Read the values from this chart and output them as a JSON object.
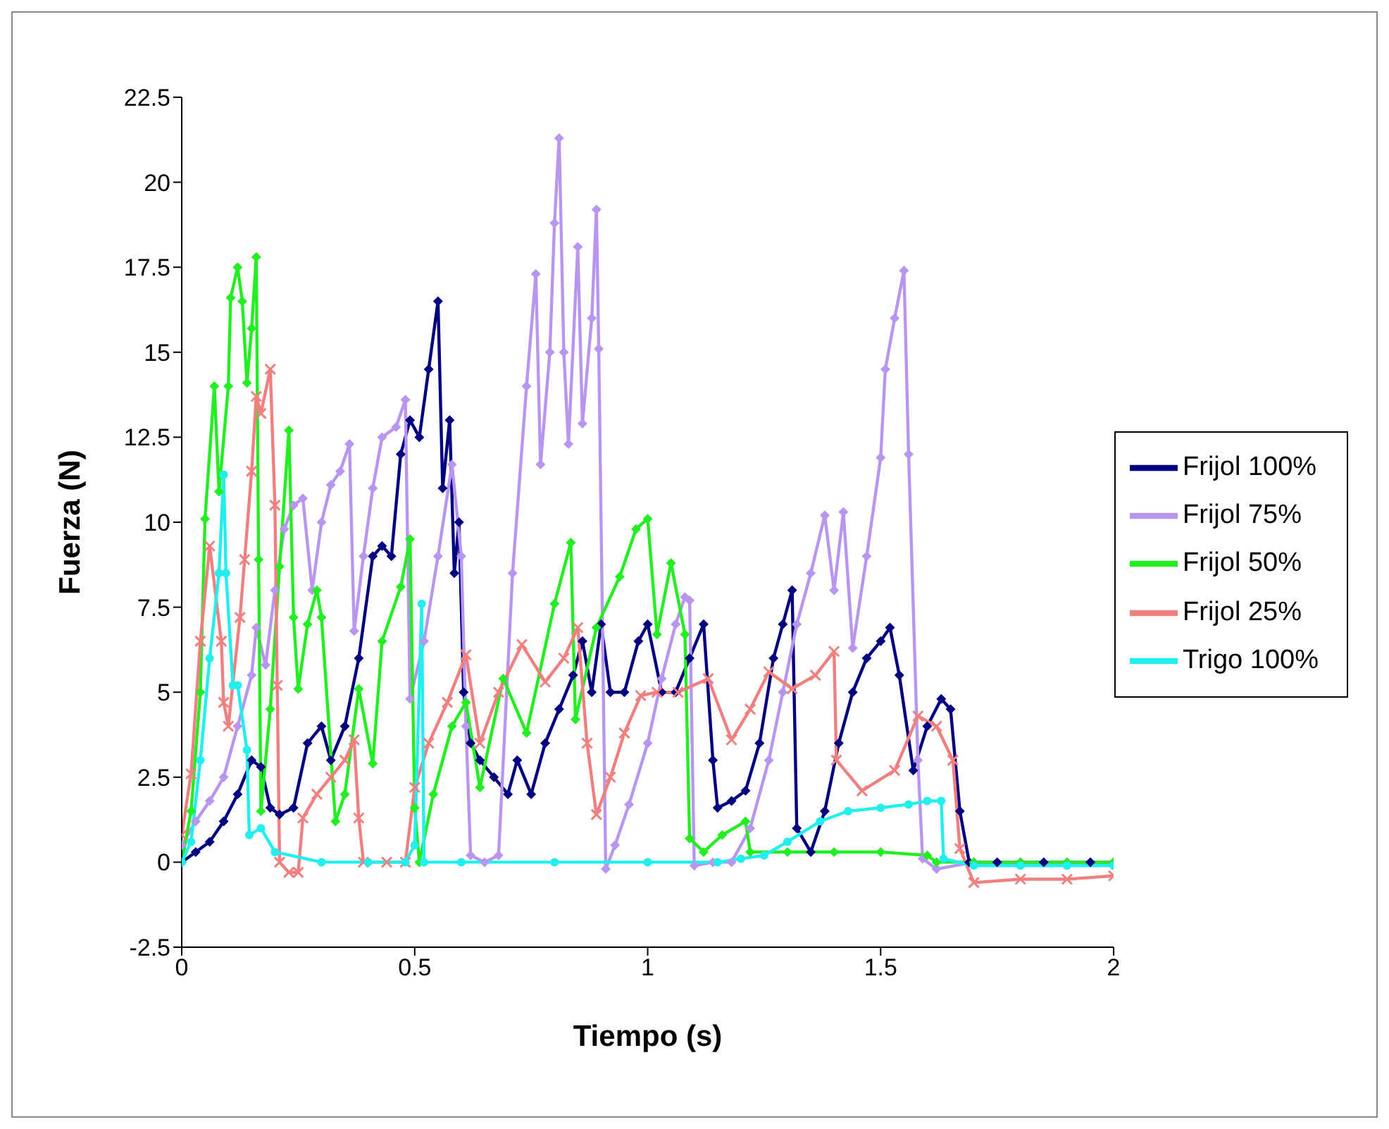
{
  "chart_data": {
    "type": "line",
    "xlabel": "Tiempo (s)",
    "ylabel": "Fuerza (N)",
    "xlim": [
      0,
      2
    ],
    "xticks": [
      0,
      0.5,
      1,
      1.5,
      2
    ],
    "ylim": [
      -2.5,
      22.5
    ],
    "yticks": [
      -2.5,
      0,
      2.5,
      5,
      7.5,
      10,
      12.5,
      15,
      17.5,
      20,
      22.5
    ],
    "grid": false,
    "legend": "right",
    "line_style": "solid",
    "series": [
      {
        "name": "Frijol 100%",
        "color": "#000080",
        "marker": "diamond",
        "x": [
          0,
          0.03,
          0.06,
          0.09,
          0.12,
          0.15,
          0.17,
          0.19,
          0.21,
          0.24,
          0.27,
          0.3,
          0.32,
          0.35,
          0.38,
          0.41,
          0.43,
          0.45,
          0.47,
          0.49,
          0.51,
          0.53,
          0.55,
          0.56,
          0.575,
          0.585,
          0.595,
          0.605,
          0.62,
          0.64,
          0.67,
          0.7,
          0.72,
          0.75,
          0.78,
          0.81,
          0.84,
          0.86,
          0.88,
          0.9,
          0.92,
          0.95,
          0.98,
          1.0,
          1.03,
          1.06,
          1.09,
          1.12,
          1.14,
          1.15,
          1.18,
          1.21,
          1.24,
          1.27,
          1.29,
          1.31,
          1.32,
          1.35,
          1.38,
          1.41,
          1.44,
          1.47,
          1.5,
          1.52,
          1.54,
          1.57,
          1.6,
          1.63,
          1.65,
          1.67,
          1.69,
          1.75,
          1.85,
          1.95,
          2.0
        ],
        "values": [
          0,
          0.3,
          0.6,
          1.2,
          2,
          3,
          2.8,
          1.6,
          1.4,
          1.6,
          3.5,
          4,
          3,
          4,
          6,
          9,
          9.3,
          9,
          12,
          13,
          12.5,
          14.5,
          16.5,
          11,
          13,
          8.5,
          10,
          5,
          3.5,
          3,
          2.5,
          2,
          3,
          2,
          3.5,
          4.5,
          5.5,
          6.5,
          5,
          7,
          5,
          5,
          6.5,
          7,
          5,
          5,
          6,
          7,
          3,
          1.6,
          1.8,
          2.1,
          3.5,
          6,
          7,
          8,
          1,
          0.3,
          1.5,
          3.5,
          5,
          6,
          6.5,
          6.9,
          5.5,
          2.7,
          4,
          4.8,
          4.5,
          1.5,
          0,
          0,
          0,
          0,
          0
        ]
      },
      {
        "name": "Frijol 75%",
        "color": "#b896f0",
        "marker": "diamond",
        "x": [
          0,
          0.03,
          0.06,
          0.09,
          0.12,
          0.15,
          0.16,
          0.18,
          0.2,
          0.22,
          0.24,
          0.26,
          0.28,
          0.3,
          0.32,
          0.34,
          0.36,
          0.37,
          0.39,
          0.41,
          0.43,
          0.46,
          0.48,
          0.49,
          0.52,
          0.55,
          0.58,
          0.6,
          0.61,
          0.62,
          0.65,
          0.68,
          0.71,
          0.74,
          0.76,
          0.77,
          0.79,
          0.8,
          0.81,
          0.82,
          0.83,
          0.85,
          0.86,
          0.88,
          0.89,
          0.895,
          0.91,
          0.93,
          0.96,
          1.0,
          1.03,
          1.06,
          1.08,
          1.09,
          1.1,
          1.14,
          1.18,
          1.22,
          1.26,
          1.29,
          1.32,
          1.35,
          1.38,
          1.4,
          1.42,
          1.44,
          1.47,
          1.5,
          1.51,
          1.53,
          1.55,
          1.56,
          1.58,
          1.59,
          1.62,
          1.7,
          1.8,
          1.9,
          2.0
        ],
        "values": [
          0.5,
          1.2,
          1.8,
          2.5,
          4,
          5.5,
          6.9,
          5.8,
          8,
          9.8,
          10.5,
          10.7,
          8,
          10,
          11.1,
          11.5,
          12.3,
          6.8,
          9,
          11,
          12.5,
          12.8,
          13.6,
          4.8,
          6.5,
          9,
          11.7,
          9,
          4,
          0.2,
          0,
          0.2,
          8.5,
          14,
          17.3,
          11.7,
          15,
          18.8,
          21.3,
          15,
          12.3,
          18.1,
          12.9,
          16,
          19.2,
          15.1,
          -0.2,
          0.5,
          1.7,
          3.5,
          5.4,
          7,
          7.8,
          7.7,
          -0.1,
          0,
          0,
          1,
          3,
          5,
          7,
          8.5,
          10.2,
          8,
          10.3,
          6.3,
          9,
          11.9,
          14.5,
          16,
          17.4,
          12,
          3,
          0.1,
          -0.2,
          0,
          0,
          0,
          0
        ]
      },
      {
        "name": "Frijol 50%",
        "color": "#22ee22",
        "marker": "diamond",
        "x": [
          0,
          0.02,
          0.04,
          0.05,
          0.07,
          0.08,
          0.1,
          0.105,
          0.12,
          0.13,
          0.14,
          0.15,
          0.16,
          0.165,
          0.17,
          0.19,
          0.21,
          0.23,
          0.24,
          0.25,
          0.27,
          0.29,
          0.3,
          0.33,
          0.35,
          0.38,
          0.41,
          0.43,
          0.47,
          0.49,
          0.5,
          0.51,
          0.54,
          0.58,
          0.61,
          0.64,
          0.69,
          0.74,
          0.8,
          0.835,
          0.845,
          0.89,
          0.94,
          0.975,
          1.0,
          1.02,
          1.05,
          1.08,
          1.09,
          1.12,
          1.16,
          1.21,
          1.22,
          1.3,
          1.4,
          1.5,
          1.6,
          1.62,
          1.7,
          1.8,
          1.9,
          2.0
        ],
        "values": [
          0,
          1.5,
          5,
          10.1,
          14,
          10.9,
          14,
          16.6,
          17.5,
          16.5,
          14.1,
          15.7,
          17.8,
          8.9,
          1.5,
          4.5,
          8.7,
          12.7,
          7.2,
          5.1,
          7,
          8,
          7.2,
          1.2,
          2,
          5.1,
          2.9,
          6.5,
          8.1,
          9.5,
          1.6,
          0,
          2,
          4,
          4.7,
          2.2,
          5.4,
          3.8,
          7.6,
          9.4,
          4.2,
          6.9,
          8.4,
          9.8,
          10.1,
          6.7,
          8.8,
          6.7,
          0.7,
          0.3,
          0.8,
          1.2,
          0.3,
          0.3,
          0.3,
          0.3,
          0.2,
          0,
          0,
          0,
          0,
          0
        ]
      },
      {
        "name": "Frijol 25%",
        "color": "#f08080",
        "marker": "cross",
        "x": [
          0,
          0.02,
          0.04,
          0.06,
          0.085,
          0.09,
          0.1,
          0.125,
          0.135,
          0.15,
          0.16,
          0.17,
          0.19,
          0.2,
          0.205,
          0.21,
          0.23,
          0.25,
          0.26,
          0.29,
          0.32,
          0.35,
          0.37,
          0.38,
          0.39,
          0.44,
          0.48,
          0.5,
          0.53,
          0.57,
          0.61,
          0.64,
          0.68,
          0.73,
          0.78,
          0.82,
          0.85,
          0.87,
          0.89,
          0.92,
          0.95,
          0.985,
          1.02,
          1.065,
          1.13,
          1.18,
          1.22,
          1.26,
          1.31,
          1.36,
          1.4,
          1.405,
          1.46,
          1.53,
          1.58,
          1.62,
          1.655,
          1.67,
          1.7,
          1.8,
          1.9,
          2.0
        ],
        "values": [
          0.8,
          2.6,
          6.5,
          9.3,
          6.5,
          4.7,
          4,
          7.2,
          8.9,
          11.5,
          13.7,
          13.2,
          14.5,
          10.5,
          5.2,
          0,
          -0.3,
          -0.3,
          1.3,
          2,
          2.5,
          3,
          3.6,
          1.3,
          0,
          0,
          0,
          2.2,
          3.5,
          4.7,
          6.1,
          3.5,
          5,
          6.4,
          5.3,
          6,
          6.9,
          3.5,
          1.4,
          2.5,
          3.8,
          4.9,
          5,
          5,
          5.4,
          3.6,
          4.5,
          5.6,
          5.1,
          5.5,
          6.2,
          3,
          2.1,
          2.7,
          4.3,
          4,
          3,
          0.4,
          -0.6,
          -0.5,
          -0.5,
          -0.4
        ]
      },
      {
        "name": "Trigo 100%",
        "color": "#22eeee",
        "marker": "circle",
        "x": [
          0,
          0.02,
          0.04,
          0.06,
          0.08,
          0.09,
          0.095,
          0.11,
          0.12,
          0.14,
          0.145,
          0.17,
          0.2,
          0.3,
          0.4,
          0.48,
          0.5,
          0.515,
          0.52,
          0.6,
          0.8,
          1.0,
          1.15,
          1.2,
          1.25,
          1.3,
          1.37,
          1.43,
          1.5,
          1.56,
          1.6,
          1.63,
          1.635,
          1.7,
          1.8,
          1.9,
          2.0
        ],
        "values": [
          0,
          0.6,
          3,
          6,
          8.5,
          11.4,
          8.5,
          5.2,
          5.2,
          3.3,
          0.8,
          1,
          0.3,
          0,
          0,
          0,
          0.5,
          7.6,
          0,
          0,
          0,
          0,
          0,
          0.1,
          0.2,
          0.6,
          1.2,
          1.5,
          1.6,
          1.7,
          1.8,
          1.8,
          0.1,
          -0.1,
          -0.1,
          -0.1,
          -0.1
        ]
      }
    ]
  }
}
